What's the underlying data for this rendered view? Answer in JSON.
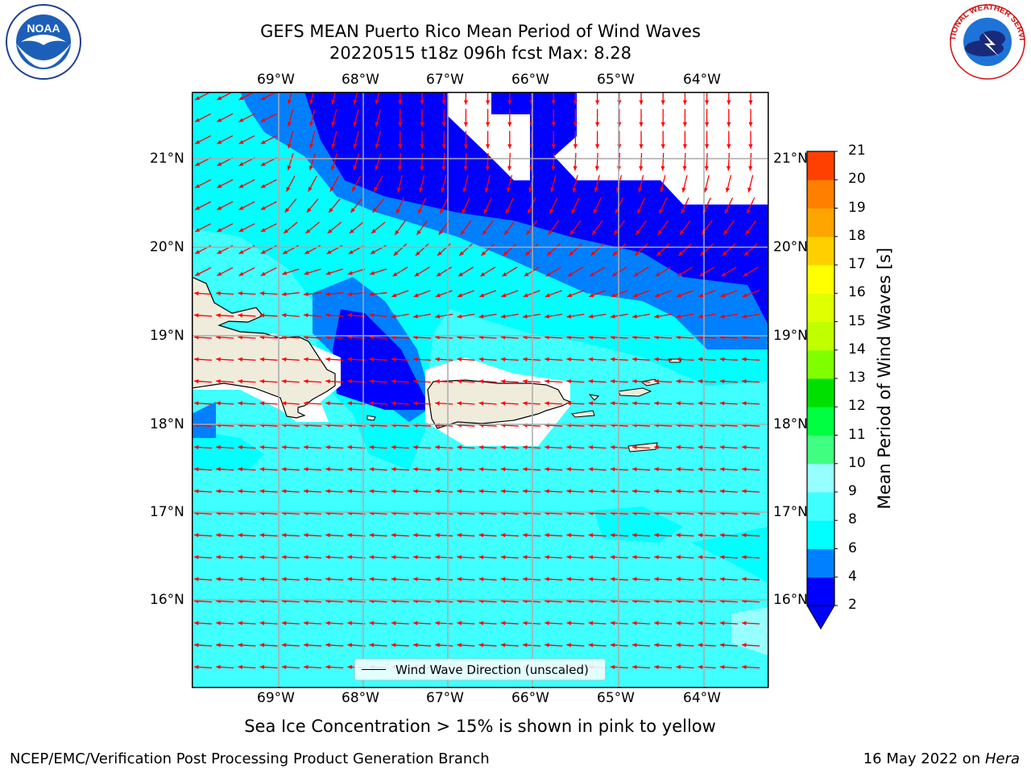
{
  "header": {
    "title_line1": "GEFS MEAN Puerto Rico Mean Period of Wind Waves",
    "title_line2": "20220515 t18z 096h fcst   Max: 8.28"
  },
  "logos": {
    "left": "NOAA",
    "right_text": "NATIONAL WEATHER SERVICE"
  },
  "map": {
    "lon_labels": [
      "69°W",
      "68°W",
      "67°W",
      "66°W",
      "65°W",
      "64°W"
    ],
    "lat_labels": [
      "21°N",
      "20°N",
      "19°N",
      "18°N",
      "17°N",
      "16°N"
    ],
    "land_color": "#efecdc",
    "arrow_color": "#ff0000",
    "legend_label": "Wind Wave Direction (unscaled)"
  },
  "colorbar": {
    "label": "Mean Period of Wind Waves [s]",
    "ticks": [
      "2",
      "4",
      "6",
      "8",
      "9",
      "10",
      "11",
      "12",
      "13",
      "14",
      "15",
      "16",
      "17",
      "18",
      "19",
      "20",
      "21"
    ],
    "colors": [
      "#0000ff",
      "#007fff",
      "#00ffff",
      "#40ffff",
      "#96ffff",
      "#40ff80",
      "#00ff40",
      "#00e000",
      "#7fff00",
      "#c0ff00",
      "#e0ff00",
      "#ffff00",
      "#ffd000",
      "#ffa500",
      "#ff8000",
      "#ff4000",
      "#ff0000"
    ]
  },
  "caption": "Sea Ice Concentration > 15% is shown in pink to yellow",
  "footer": {
    "left": "NCEP/EMC/Verification Post Processing Product Generation Branch",
    "right_prefix": "16 May 2022 on ",
    "right_host": "Hera"
  }
}
